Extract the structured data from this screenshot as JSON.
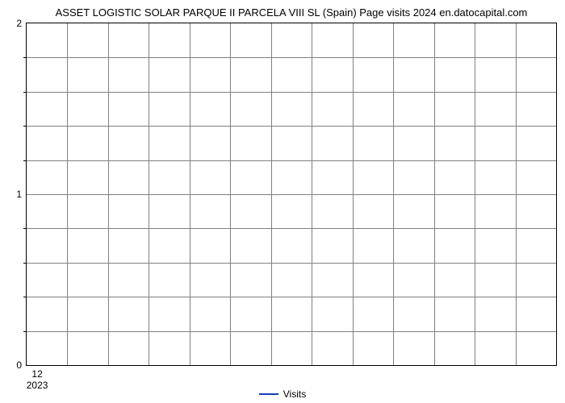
{
  "chart": {
    "type": "line",
    "title": "ASSET LOGISTIC SOLAR PARQUE II PARCELA VIII SL (Spain) Page visits 2024 en.datocapital.com",
    "title_fontsize": 13,
    "title_color": "#000000",
    "background_color": "#ffffff",
    "border_color": "#000000",
    "grid_color": "#808080",
    "axis_label_fontsize": 12,
    "axis_label_color": "#000000",
    "y_axis": {
      "min": 0,
      "max": 2,
      "major_ticks": [
        0,
        1,
        2
      ],
      "minor_tick_count_between": 4,
      "grid_lines": 9
    },
    "x_axis": {
      "tick_label": "12",
      "year_label": "2023",
      "grid_lines": 12
    },
    "legend": {
      "label": "Visits",
      "color": "#143ebc",
      "line_width": 2
    },
    "series": {
      "name": "Visits",
      "color": "#143ebc",
      "values": []
    }
  }
}
